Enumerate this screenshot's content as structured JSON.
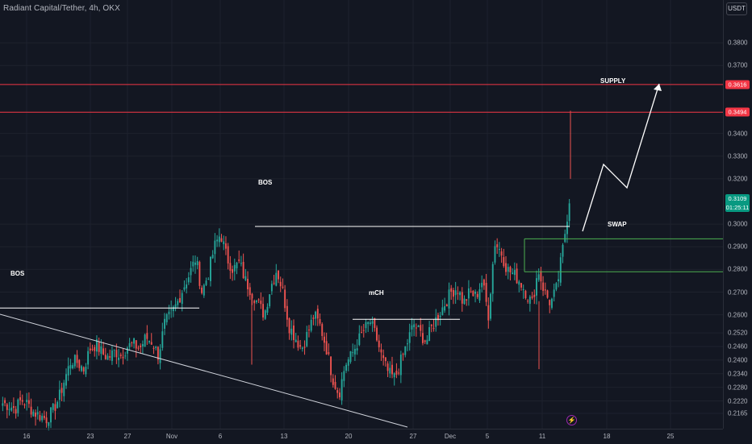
{
  "header": {
    "symbol_title": "Radiant Capital/Tether, 4h, OKX"
  },
  "price_scale": {
    "currency": "USDT",
    "ticks": [
      "0.3800",
      "0.3700",
      "0.3494",
      "0.3400",
      "0.3300",
      "0.3200",
      "0.3000",
      "0.2900",
      "0.2800",
      "0.2700",
      "0.2600",
      "0.2520",
      "0.2460",
      "0.2400",
      "0.2340",
      "0.2280",
      "0.2220",
      "0.2165"
    ],
    "tags": [
      {
        "label": "0.3616",
        "color": "#f23645"
      },
      {
        "label": "0.3494",
        "color": "#f23645"
      },
      {
        "label": "0.3109",
        "sublabel": "01:25:11",
        "color": "#089981"
      }
    ]
  },
  "time_scale": {
    "labels": [
      "16",
      "23",
      "27",
      "Nov",
      "6",
      "13",
      "20",
      "27",
      "Dec",
      "5",
      "11",
      "18",
      "25"
    ]
  },
  "annotations": {
    "bos_left": "BOS",
    "bos_top": "BOS",
    "mch": "mCH",
    "swap": "SWAP",
    "supply": "SUPPLY"
  },
  "colors": {
    "background": "#131722",
    "up": "#26a69a",
    "down": "#ef5350",
    "resistance": "#f23645",
    "zone": "#4caf50",
    "drawing": "#ffffff"
  },
  "chart_data": {
    "type": "candlestick",
    "title": "Radiant Capital/Tether, 4h, OKX",
    "ylim": [
      0.214,
      0.39
    ],
    "current_price": 0.3109,
    "horizontal_levels": [
      0.3616,
      0.3494
    ],
    "structure_levels": [
      {
        "label": "BOS",
        "price": 0.263
      },
      {
        "label": "BOS",
        "price": 0.299
      },
      {
        "label": "mCH",
        "price": 0.258
      }
    ],
    "swap_zone": [
      0.279,
      0.2935
    ],
    "close_path": [
      0.221,
      0.22,
      0.2185,
      0.2225,
      0.2205,
      0.217,
      0.2155,
      0.214,
      0.2175,
      0.223,
      0.232,
      0.24,
      0.239,
      0.236,
      0.245,
      0.247,
      0.243,
      0.241,
      0.244,
      0.242,
      0.246,
      0.247,
      0.245,
      0.25,
      0.248,
      0.242,
      0.256,
      0.26,
      0.265,
      0.272,
      0.278,
      0.285,
      0.27,
      0.278,
      0.29,
      0.296,
      0.285,
      0.28,
      0.283,
      0.275,
      0.27,
      0.265,
      0.26,
      0.272,
      0.28,
      0.27,
      0.255,
      0.25,
      0.245,
      0.252,
      0.26,
      0.255,
      0.245,
      0.232,
      0.225,
      0.238,
      0.242,
      0.248,
      0.253,
      0.257,
      0.25,
      0.24,
      0.234,
      0.232,
      0.24,
      0.248,
      0.256,
      0.252,
      0.248,
      0.255,
      0.26,
      0.265,
      0.27,
      0.272,
      0.265,
      0.27,
      0.268,
      0.275,
      0.26,
      0.292,
      0.288,
      0.28,
      0.278,
      0.275,
      0.27,
      0.265,
      0.28,
      0.27,
      0.265,
      0.272,
      0.29,
      0.3109
    ]
  }
}
